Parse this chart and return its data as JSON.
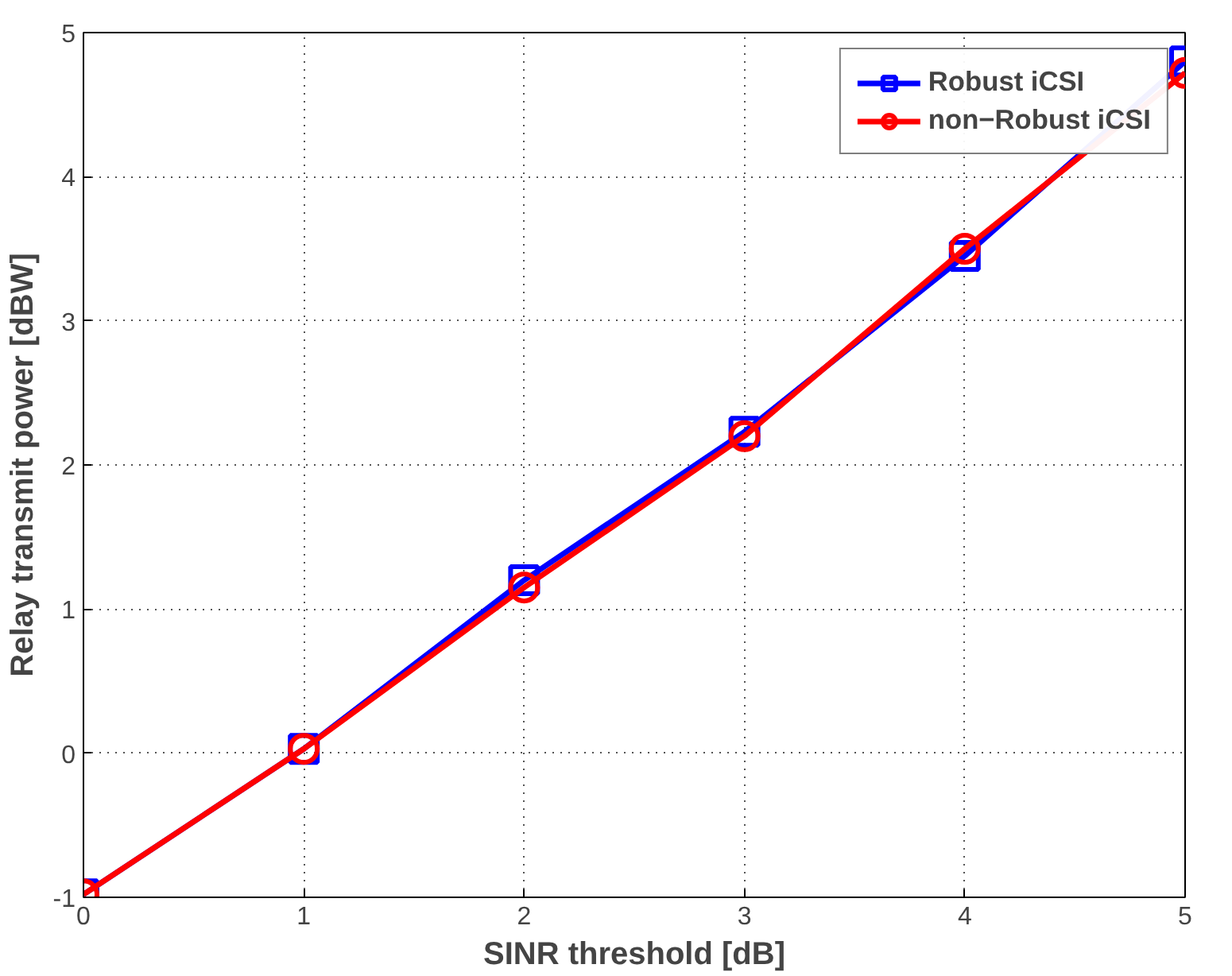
{
  "chart_data": {
    "type": "line",
    "xlabel": "SINR threshold [dB]",
    "ylabel": "Relay transmit power [dBW]",
    "x": [
      0,
      1,
      2,
      3,
      4,
      5
    ],
    "series": [
      {
        "name": "Robust iCSI",
        "color": "#0000ff",
        "marker": "square",
        "values": [
          -0.98,
          0.03,
          1.2,
          2.23,
          3.45,
          4.8
        ]
      },
      {
        "name": "non−Robust iCSI",
        "color": "#ff0000",
        "marker": "circle",
        "values": [
          -0.98,
          0.03,
          1.15,
          2.2,
          3.5,
          4.72
        ]
      }
    ],
    "xlim": [
      0,
      5
    ],
    "ylim": [
      -1,
      5
    ],
    "xticks": [
      0,
      1,
      2,
      3,
      4,
      5
    ],
    "yticks": [
      -1,
      0,
      1,
      2,
      3,
      4,
      5
    ],
    "grid": true,
    "legend": "top right",
    "line_style": "solid"
  }
}
